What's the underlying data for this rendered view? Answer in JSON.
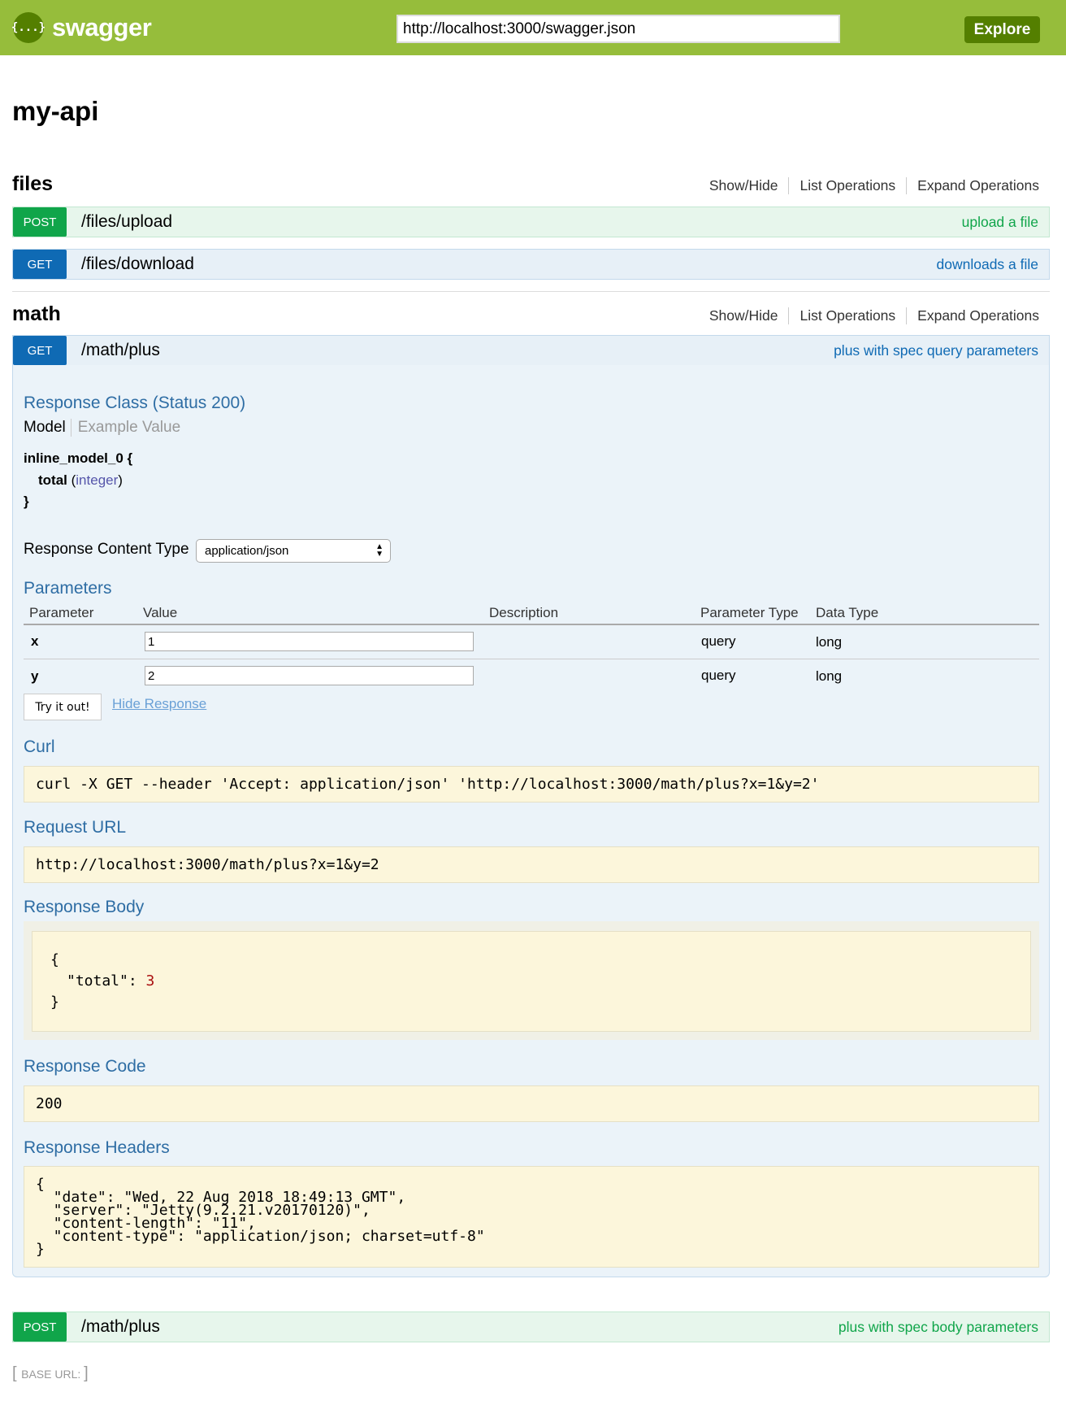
{
  "header": {
    "logo_text": "swagger",
    "logo_icon": "{...}",
    "url": "http://localhost:3000/swagger.json",
    "explore_label": "Explore"
  },
  "title": "my-api",
  "resources": [
    {
      "name": "files",
      "links": [
        "Show/Hide",
        "List Operations",
        "Expand Operations"
      ],
      "operations": [
        {
          "method": "POST",
          "path": "/files/upload",
          "summary": "upload a file"
        },
        {
          "method": "GET",
          "path": "/files/download",
          "summary": "downloads a file"
        }
      ]
    },
    {
      "name": "math",
      "links": [
        "Show/Hide",
        "List Operations",
        "Expand Operations"
      ],
      "operations": [
        {
          "method": "GET",
          "path": "/math/plus",
          "summary": "plus with spec query parameters"
        },
        {
          "method": "POST",
          "path": "/math/plus",
          "summary": "plus with spec body parameters"
        }
      ]
    }
  ],
  "expanded": {
    "response_class": "Response Class (Status 200)",
    "model_tab": "Model",
    "example_tab": "Example Value",
    "model_name": "inline_model_0 {",
    "model_field": "total",
    "model_type": "integer",
    "model_close": "}",
    "content_type_label": "Response Content Type",
    "content_type": "application/json",
    "parameters_title": "Parameters",
    "columns": [
      "Parameter",
      "Value",
      "Description",
      "Parameter Type",
      "Data Type"
    ],
    "params": [
      {
        "name": "x",
        "value": "1",
        "ptype": "query",
        "dtype": "long"
      },
      {
        "name": "y",
        "value": "2",
        "ptype": "query",
        "dtype": "long"
      }
    ],
    "try_label": "Try it out!",
    "hide_label": "Hide Response",
    "curl_title": "Curl",
    "curl": "curl -X GET --header 'Accept: application/json' 'http://localhost:3000/math/plus?x=1&y=2'",
    "request_url_title": "Request URL",
    "request_url": "http://localhost:3000/math/plus?x=1&y=2",
    "response_body_title": "Response Body",
    "body_open": "{",
    "body_key": "\"total\": ",
    "body_value": "3",
    "body_close": "}",
    "response_code_title": "Response Code",
    "response_code": "200",
    "response_headers_title": "Response Headers",
    "headers_text": "{\n  \"date\": \"Wed, 22 Aug 2018 18:49:13 GMT\",\n  \"server\": \"Jetty(9.2.21.v20170120)\",\n  \"content-length\": \"11\",\n  \"content-type\": \"application/json; charset=utf-8\"\n}"
  },
  "footer": {
    "base_url_label": "BASE URL",
    "base_url_value": ""
  }
}
